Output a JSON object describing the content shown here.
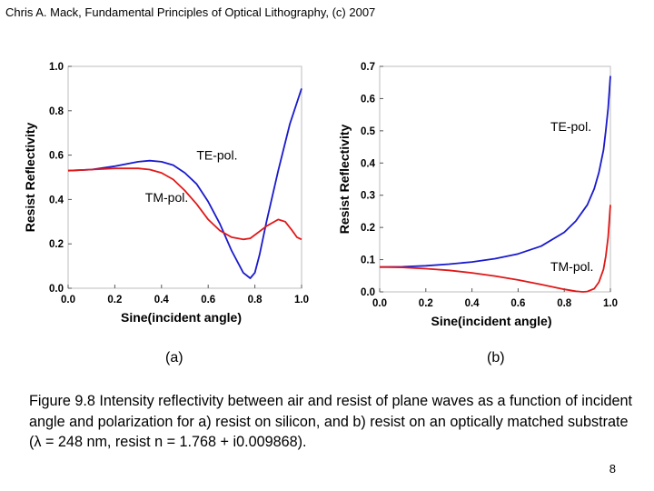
{
  "header": "Chris A. Mack, Fundamental Principles of Optical Lithography, (c) 2007",
  "colors": {
    "te": "#1a1acc",
    "tm": "#e01818"
  },
  "chart_data": [
    {
      "type": "line",
      "panel_label": "(a)",
      "xlabel": "Sine(incident angle)",
      "ylabel": "Resist Reflectivity",
      "xlim": [
        0,
        1
      ],
      "ylim": [
        0,
        1
      ],
      "x_ticks": [
        "0.0",
        "0.2",
        "0.4",
        "0.6",
        "0.8",
        "1.0"
      ],
      "y_ticks": [
        "0.0",
        "0.2",
        "0.4",
        "0.6",
        "0.8",
        "1.0"
      ],
      "series": [
        {
          "name": "TE-pol.",
          "color": "#1a1acc",
          "x": [
            0,
            0.1,
            0.2,
            0.3,
            0.35,
            0.4,
            0.45,
            0.5,
            0.55,
            0.6,
            0.65,
            0.7,
            0.75,
            0.78,
            0.8,
            0.82,
            0.85,
            0.9,
            0.95,
            1.0
          ],
          "y": [
            0.53,
            0.535,
            0.55,
            0.57,
            0.575,
            0.57,
            0.555,
            0.52,
            0.47,
            0.39,
            0.29,
            0.17,
            0.07,
            0.045,
            0.07,
            0.15,
            0.3,
            0.53,
            0.74,
            0.9
          ]
        },
        {
          "name": "TM-pol.",
          "color": "#e01818",
          "x": [
            0,
            0.1,
            0.2,
            0.3,
            0.35,
            0.4,
            0.45,
            0.5,
            0.55,
            0.6,
            0.65,
            0.7,
            0.75,
            0.78,
            0.8,
            0.85,
            0.9,
            0.93,
            0.96,
            0.98,
            1.0
          ],
          "y": [
            0.53,
            0.535,
            0.54,
            0.54,
            0.535,
            0.52,
            0.49,
            0.44,
            0.38,
            0.31,
            0.26,
            0.23,
            0.22,
            0.225,
            0.24,
            0.28,
            0.31,
            0.3,
            0.26,
            0.23,
            0.22
          ]
        }
      ],
      "annotations": [
        {
          "text": "TE-pol.",
          "x": 0.55,
          "y": 0.58
        },
        {
          "text": "TM-pol.",
          "x": 0.33,
          "y": 0.39
        }
      ]
    },
    {
      "type": "line",
      "panel_label": "(b)",
      "xlabel": "Sine(incident angle)",
      "ylabel": "Resist Reflectivity",
      "xlim": [
        0,
        1
      ],
      "ylim": [
        0,
        0.7
      ],
      "x_ticks": [
        "0.0",
        "0.2",
        "0.4",
        "0.6",
        "0.8",
        "1.0"
      ],
      "y_ticks": [
        "0.0",
        "0.1",
        "0.2",
        "0.3",
        "0.4",
        "0.5",
        "0.6",
        "0.7"
      ],
      "series": [
        {
          "name": "TE-pol.",
          "color": "#1a1acc",
          "x": [
            0,
            0.1,
            0.2,
            0.3,
            0.4,
            0.5,
            0.6,
            0.7,
            0.8,
            0.85,
            0.9,
            0.93,
            0.95,
            0.97,
            0.98,
            0.99,
            1.0
          ],
          "y": [
            0.077,
            0.078,
            0.081,
            0.086,
            0.093,
            0.103,
            0.118,
            0.142,
            0.185,
            0.22,
            0.27,
            0.32,
            0.37,
            0.44,
            0.5,
            0.57,
            0.67
          ]
        },
        {
          "name": "TM-pol.",
          "color": "#e01818",
          "x": [
            0,
            0.1,
            0.2,
            0.3,
            0.4,
            0.5,
            0.6,
            0.7,
            0.8,
            0.85,
            0.88,
            0.9,
            0.93,
            0.95,
            0.97,
            0.98,
            0.99,
            1.0
          ],
          "y": [
            0.077,
            0.076,
            0.072,
            0.067,
            0.059,
            0.049,
            0.037,
            0.023,
            0.008,
            0.002,
            0.0,
            0.001,
            0.01,
            0.03,
            0.07,
            0.11,
            0.17,
            0.27
          ]
        }
      ],
      "annotations": [
        {
          "text": "TE-pol.",
          "x": 0.74,
          "y": 0.5
        },
        {
          "text": "TM-pol.",
          "x": 0.74,
          "y": 0.065
        }
      ]
    }
  ],
  "figure_caption": "Figure 9.8 Intensity reflectivity between air and resist of plane waves as a function of incident angle and polarization for a) resist on silicon, and b) resist on an optically matched substrate (λ = 248 nm, resist n = 1.768 + i0.009868).",
  "page_number": "8"
}
